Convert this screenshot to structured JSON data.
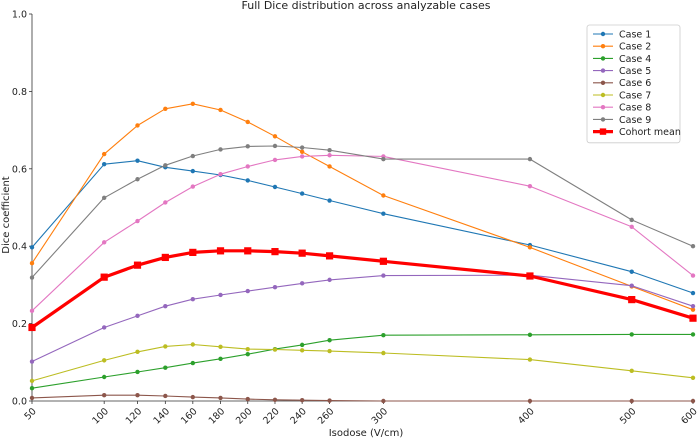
{
  "chart_data": {
    "type": "line",
    "title": "Full Dice distribution across analyzable cases",
    "xlabel": "Isodose (V/cm)",
    "ylabel": "Dice coefficient",
    "xlim": [
      50,
      600
    ],
    "ylim": [
      0.0,
      1.0
    ],
    "x_scale": "categorical-spaced",
    "x": [
      50,
      100,
      120,
      140,
      160,
      180,
      200,
      220,
      240,
      260,
      300,
      400,
      500,
      600
    ],
    "x_tick_labels": [
      "50",
      "100",
      "120",
      "140",
      "160",
      "180",
      "200",
      "220",
      "240",
      "260",
      "300",
      "400",
      "500",
      "600"
    ],
    "y_ticks": [
      "0.0",
      "0.2",
      "0.4",
      "0.6",
      "0.8",
      "1.0"
    ],
    "grid": "off",
    "legend_position": "top-right",
    "series": [
      {
        "name": "Case 1",
        "color": "#1f77b4",
        "values": [
          0.397,
          0.612,
          0.621,
          0.604,
          0.594,
          0.584,
          0.57,
          0.553,
          0.536,
          0.518,
          0.484,
          0.403,
          0.334,
          0.279
        ]
      },
      {
        "name": "Case 2",
        "color": "#ff7f0e",
        "values": [
          0.356,
          0.638,
          0.712,
          0.755,
          0.768,
          0.752,
          0.721,
          0.684,
          0.644,
          0.606,
          0.531,
          0.397,
          0.296,
          0.236
        ]
      },
      {
        "name": "Case 4",
        "color": "#2ca02c",
        "values": [
          0.033,
          0.062,
          0.075,
          0.086,
          0.098,
          0.109,
          0.121,
          0.134,
          0.145,
          0.157,
          0.17,
          0.171,
          0.172,
          0.172
        ]
      },
      {
        "name": "Case 5",
        "color": "#9467bd",
        "values": [
          0.102,
          0.19,
          0.22,
          0.245,
          0.263,
          0.274,
          0.284,
          0.294,
          0.304,
          0.313,
          0.324,
          0.325,
          0.298,
          0.245
        ]
      },
      {
        "name": "Case 6",
        "color": "#8c564b",
        "values": [
          0.008,
          0.015,
          0.015,
          0.013,
          0.01,
          0.008,
          0.005,
          0.003,
          0.002,
          0.001,
          0.0,
          0.0,
          0.0,
          0.0
        ]
      },
      {
        "name": "Case 7",
        "color": "#bcbd22",
        "values": [
          0.052,
          0.105,
          0.127,
          0.141,
          0.146,
          0.14,
          0.134,
          0.133,
          0.131,
          0.129,
          0.124,
          0.107,
          0.078,
          0.06
        ]
      },
      {
        "name": "Case 8",
        "color": "#e377c2",
        "values": [
          0.233,
          0.41,
          0.465,
          0.513,
          0.554,
          0.586,
          0.606,
          0.623,
          0.632,
          0.635,
          0.632,
          0.555,
          0.45,
          0.324
        ]
      },
      {
        "name": "Case 9",
        "color": "#7f7f7f",
        "values": [
          0.319,
          0.525,
          0.573,
          0.609,
          0.633,
          0.65,
          0.658,
          0.659,
          0.655,
          0.648,
          0.625,
          0.625,
          0.468,
          0.4
        ]
      },
      {
        "name": "Cohort mean",
        "color": "#ff0000",
        "thick": true,
        "values": [
          0.19,
          0.32,
          0.351,
          0.371,
          0.384,
          0.388,
          0.388,
          0.386,
          0.382,
          0.375,
          0.361,
          0.323,
          0.262,
          0.214
        ]
      }
    ]
  }
}
